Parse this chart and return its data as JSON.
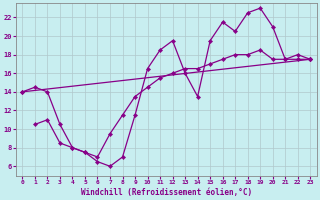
{
  "xlabel": "Windchill (Refroidissement éolien,°C)",
  "background_color": "#c8eef0",
  "grid_color": "#b0c8cc",
  "line_color": "#880088",
  "x_ticks": [
    0,
    1,
    2,
    3,
    4,
    5,
    6,
    7,
    8,
    9,
    10,
    11,
    12,
    13,
    14,
    15,
    16,
    17,
    18,
    19,
    20,
    21,
    22,
    23
  ],
  "y_ticks": [
    6,
    8,
    10,
    12,
    14,
    16,
    18,
    20,
    22
  ],
  "xlim": [
    -0.5,
    23.5
  ],
  "ylim": [
    5.0,
    23.5
  ],
  "series1_x": [
    0,
    1,
    2,
    3,
    4,
    5,
    6,
    7,
    8,
    9,
    10,
    11,
    12,
    13,
    14,
    15,
    16,
    17,
    18,
    19,
    20,
    21,
    22,
    23
  ],
  "series1_y": [
    14.0,
    14.5,
    14.0,
    10.5,
    8.0,
    7.5,
    6.5,
    6.0,
    7.0,
    11.5,
    16.5,
    18.5,
    19.5,
    16.0,
    13.5,
    19.5,
    21.5,
    20.5,
    22.5,
    23.0,
    21.0,
    17.5,
    18.0,
    17.5
  ],
  "series2_x": [
    1,
    2,
    3,
    4,
    5,
    6,
    7,
    8,
    9,
    10,
    11,
    12,
    13,
    14,
    15,
    16,
    17,
    18,
    19,
    20,
    21,
    22,
    23
  ],
  "series2_y": [
    10.5,
    11.0,
    8.5,
    8.0,
    7.5,
    7.0,
    9.5,
    11.5,
    13.5,
    14.5,
    15.5,
    16.0,
    16.5,
    16.5,
    17.0,
    17.5,
    18.0,
    18.0,
    18.5,
    17.5,
    17.5,
    17.5,
    17.5
  ],
  "series3_x": [
    0,
    23
  ],
  "series3_y": [
    14.0,
    17.5
  ]
}
